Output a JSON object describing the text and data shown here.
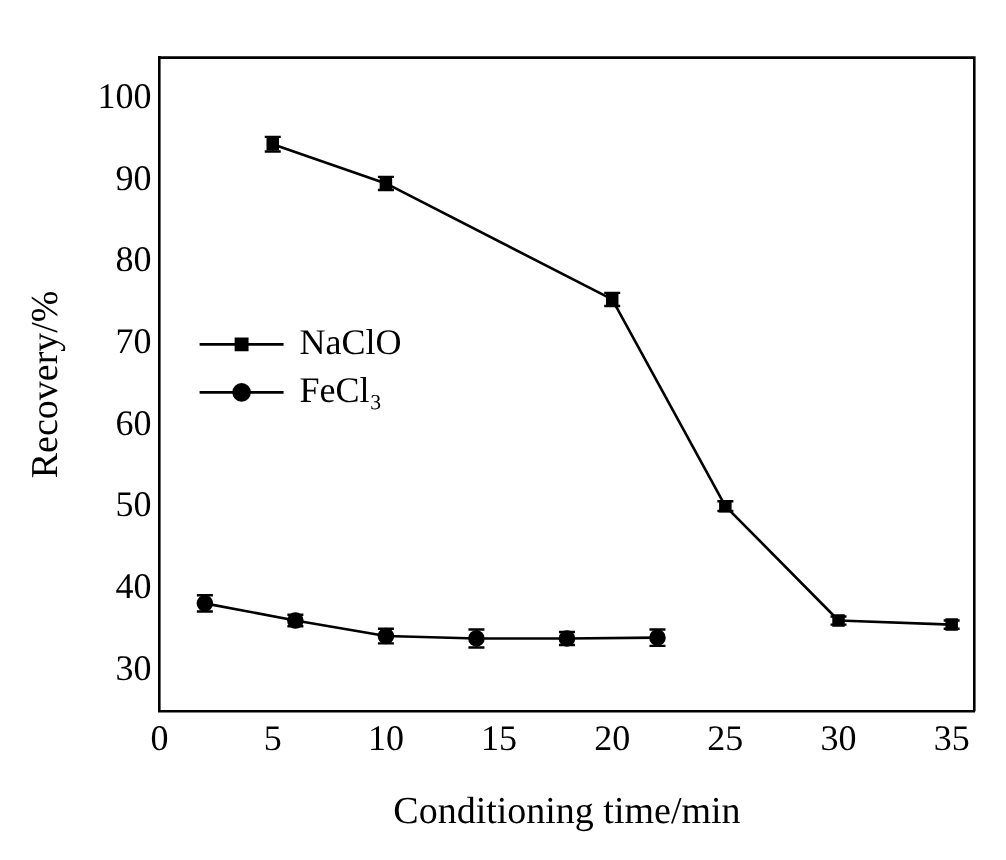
{
  "chart_data": {
    "type": "line",
    "xlabel": "Conditioning time/min",
    "ylabel": "Recovery/%",
    "xlim": [
      0,
      36
    ],
    "xticks": [
      0,
      5,
      10,
      15,
      20,
      25,
      30,
      35
    ],
    "ylim": [
      25,
      105
    ],
    "yticks": [
      30,
      40,
      50,
      60,
      70,
      80,
      90,
      100
    ],
    "grid": false,
    "legend": "left",
    "line_style": "solid",
    "series": [
      {
        "name": "NaClO",
        "color": "#000000",
        "marker": "square",
        "x": [
          5,
          10,
          20,
          25,
          30,
          35
        ],
        "values": [
          94.4,
          89.6,
          75.4,
          50.1,
          36.1,
          35.6
        ],
        "errors": [
          0.9,
          0.8,
          0.8,
          0.6,
          0.5,
          0.5
        ]
      },
      {
        "name": "FeCl₃",
        "color": "#000000",
        "marker": "circle",
        "x": [
          2,
          6,
          10,
          14,
          18,
          22
        ],
        "values": [
          38.2,
          36.1,
          34.2,
          33.9,
          33.9,
          34.0
        ],
        "errors": [
          1.0,
          0.7,
          0.9,
          1.1,
          0.8,
          1.0
        ]
      }
    ]
  }
}
